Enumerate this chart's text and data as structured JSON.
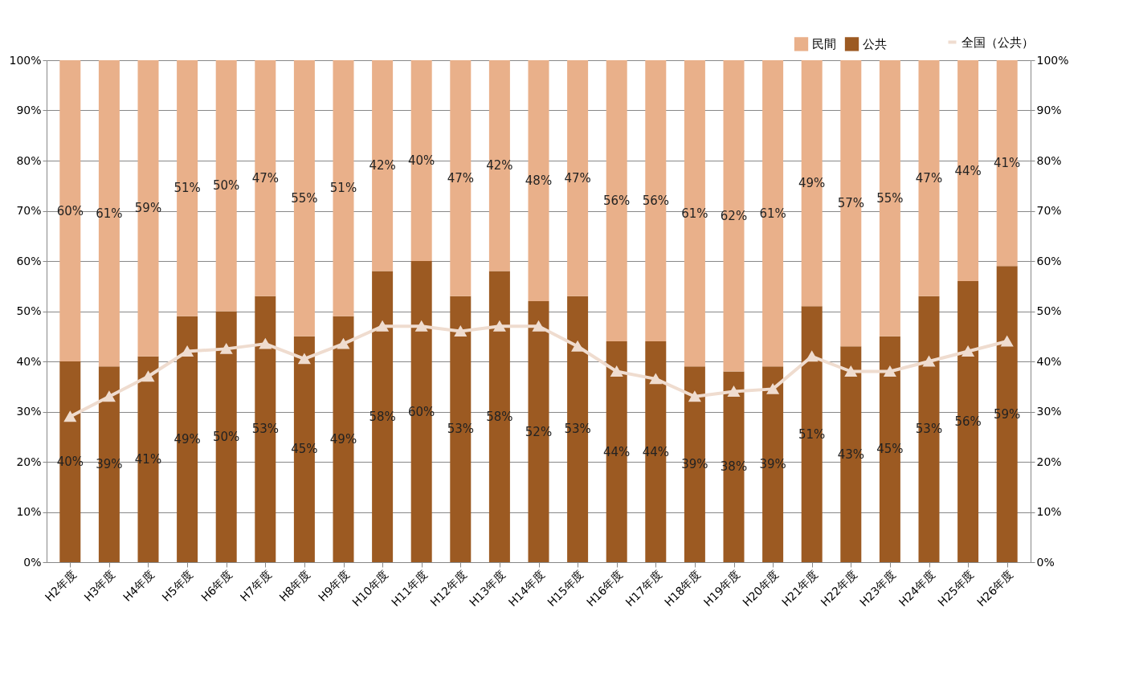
{
  "chart_data": {
    "type": "bar",
    "stacked": true,
    "categories": [
      "H2年度",
      "H3年度",
      "H4年度",
      "H5年度",
      "H6年度",
      "H7年度",
      "H8年度",
      "H9年度",
      "H10年度",
      "H11年度",
      "H12年度",
      "H13年度",
      "H14年度",
      "H15年度",
      "H16年度",
      "H17年度",
      "H18年度",
      "H19年度",
      "H20年度",
      "H21年度",
      "H22年度",
      "H23年度",
      "H24年度",
      "H25年度",
      "H26年度"
    ],
    "series": [
      {
        "name": "公共",
        "color": "#9c5a22",
        "values": [
          40,
          39,
          41,
          49,
          50,
          53,
          45,
          49,
          58,
          60,
          53,
          58,
          52,
          53,
          44,
          44,
          39,
          38,
          39,
          51,
          43,
          45,
          53,
          56,
          59
        ],
        "value_labels": [
          "40%",
          "39%",
          "41%",
          "49%",
          "50%",
          "53%",
          "45%",
          "49%",
          "58%",
          "60%",
          "53%",
          "58%",
          "52%",
          "53%",
          "44%",
          "44%",
          "39%",
          "38%",
          "39%",
          "51%",
          "43%",
          "45%",
          "53%",
          "56%",
          "59%"
        ]
      },
      {
        "name": "民間",
        "color": "#e9b08a",
        "values": [
          60,
          61,
          59,
          51,
          50,
          47,
          55,
          51,
          42,
          40,
          47,
          42,
          48,
          47,
          56,
          56,
          61,
          62,
          61,
          49,
          57,
          55,
          47,
          44,
          41
        ],
        "value_labels": [
          "60%",
          "61%",
          "59%",
          "51%",
          "50%",
          "47%",
          "55%",
          "51%",
          "42%",
          "40%",
          "47%",
          "42%",
          "48%",
          "47%",
          "56%",
          "56%",
          "61%",
          "62%",
          "61%",
          "49%",
          "57%",
          "55%",
          "47%",
          "44%",
          "41%"
        ]
      },
      {
        "name": "全国（公共）",
        "type": "line",
        "axis": "y2",
        "color": "#efdccf",
        "marker": "triangle",
        "values": [
          29,
          33,
          37,
          42,
          42.5,
          43.5,
          40.5,
          43.5,
          47,
          47,
          46,
          47,
          47,
          43,
          38,
          36.5,
          33,
          34,
          34.5,
          41,
          38,
          38,
          40,
          42,
          44
        ]
      }
    ],
    "ylim": [
      0,
      100
    ],
    "yticks": [
      {
        "value": 0,
        "label": "0%"
      },
      {
        "value": 10,
        "label": "10%"
      },
      {
        "value": 20,
        "label": "20%"
      },
      {
        "value": 30,
        "label": "30%"
      },
      {
        "value": 40,
        "label": "40%"
      },
      {
        "value": 50,
        "label": "50%"
      },
      {
        "value": 60,
        "label": "60%"
      },
      {
        "value": 70,
        "label": "70%"
      },
      {
        "value": 80,
        "label": "80%"
      },
      {
        "value": 90,
        "label": "90%"
      },
      {
        "value": 100,
        "label": "100%"
      }
    ],
    "y2lim": [
      0,
      100
    ],
    "y2ticks": [
      {
        "value": 0,
        "label": "0%"
      },
      {
        "value": 10,
        "label": "10%"
      },
      {
        "value": 20,
        "label": "20%"
      },
      {
        "value": 30,
        "label": "30%"
      },
      {
        "value": 40,
        "label": "40%"
      },
      {
        "value": 50,
        "label": "50%"
      },
      {
        "value": 60,
        "label": "60%"
      },
      {
        "value": 70,
        "label": "70%"
      },
      {
        "value": 80,
        "label": "80%"
      },
      {
        "value": 90,
        "label": "90%"
      },
      {
        "value": 100,
        "label": "100%"
      }
    ],
    "grid": "y",
    "legend": "top right"
  }
}
